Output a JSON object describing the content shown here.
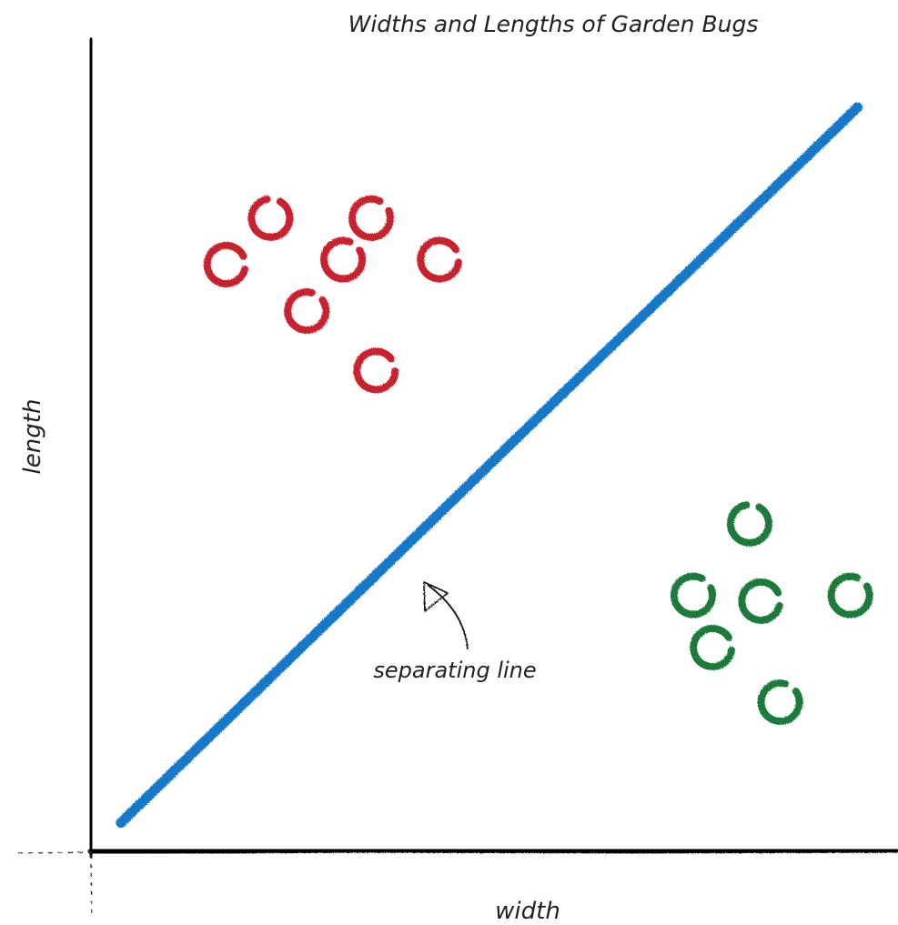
{
  "chart_data": {
    "type": "scatter",
    "title": "Widths and Lengths of Garden Bugs",
    "xlabel": "width",
    "ylabel": "length",
    "xlim": [
      0,
      100
    ],
    "ylim": [
      0,
      100
    ],
    "grid": false,
    "legend": "none",
    "series": [
      {
        "color": "#c8202f",
        "marker": "hollow-circle",
        "points": [
          {
            "x": 22.3,
            "y": 77.7
          },
          {
            "x": 34.8,
            "y": 77.7
          },
          {
            "x": 16.8,
            "y": 72.0
          },
          {
            "x": 31.3,
            "y": 72.6
          },
          {
            "x": 43.3,
            "y": 72.6
          },
          {
            "x": 26.8,
            "y": 66.3
          },
          {
            "x": 35.4,
            "y": 59.0
          }
        ]
      },
      {
        "color": "#1e7a3a",
        "marker": "hollow-circle",
        "points": [
          {
            "x": 81.8,
            "y": 40.2
          },
          {
            "x": 74.8,
            "y": 31.4
          },
          {
            "x": 83.2,
            "y": 30.7
          },
          {
            "x": 94.3,
            "y": 31.4
          },
          {
            "x": 77.2,
            "y": 25.0
          },
          {
            "x": 85.6,
            "y": 18.3
          }
        ]
      }
    ],
    "line": {
      "color": "#1878c8",
      "points": [
        {
          "x": 3.7,
          "y": 3.5
        },
        {
          "x": 95.2,
          "y": 91.3
        }
      ]
    },
    "annotation": {
      "text": "separating line"
    }
  }
}
